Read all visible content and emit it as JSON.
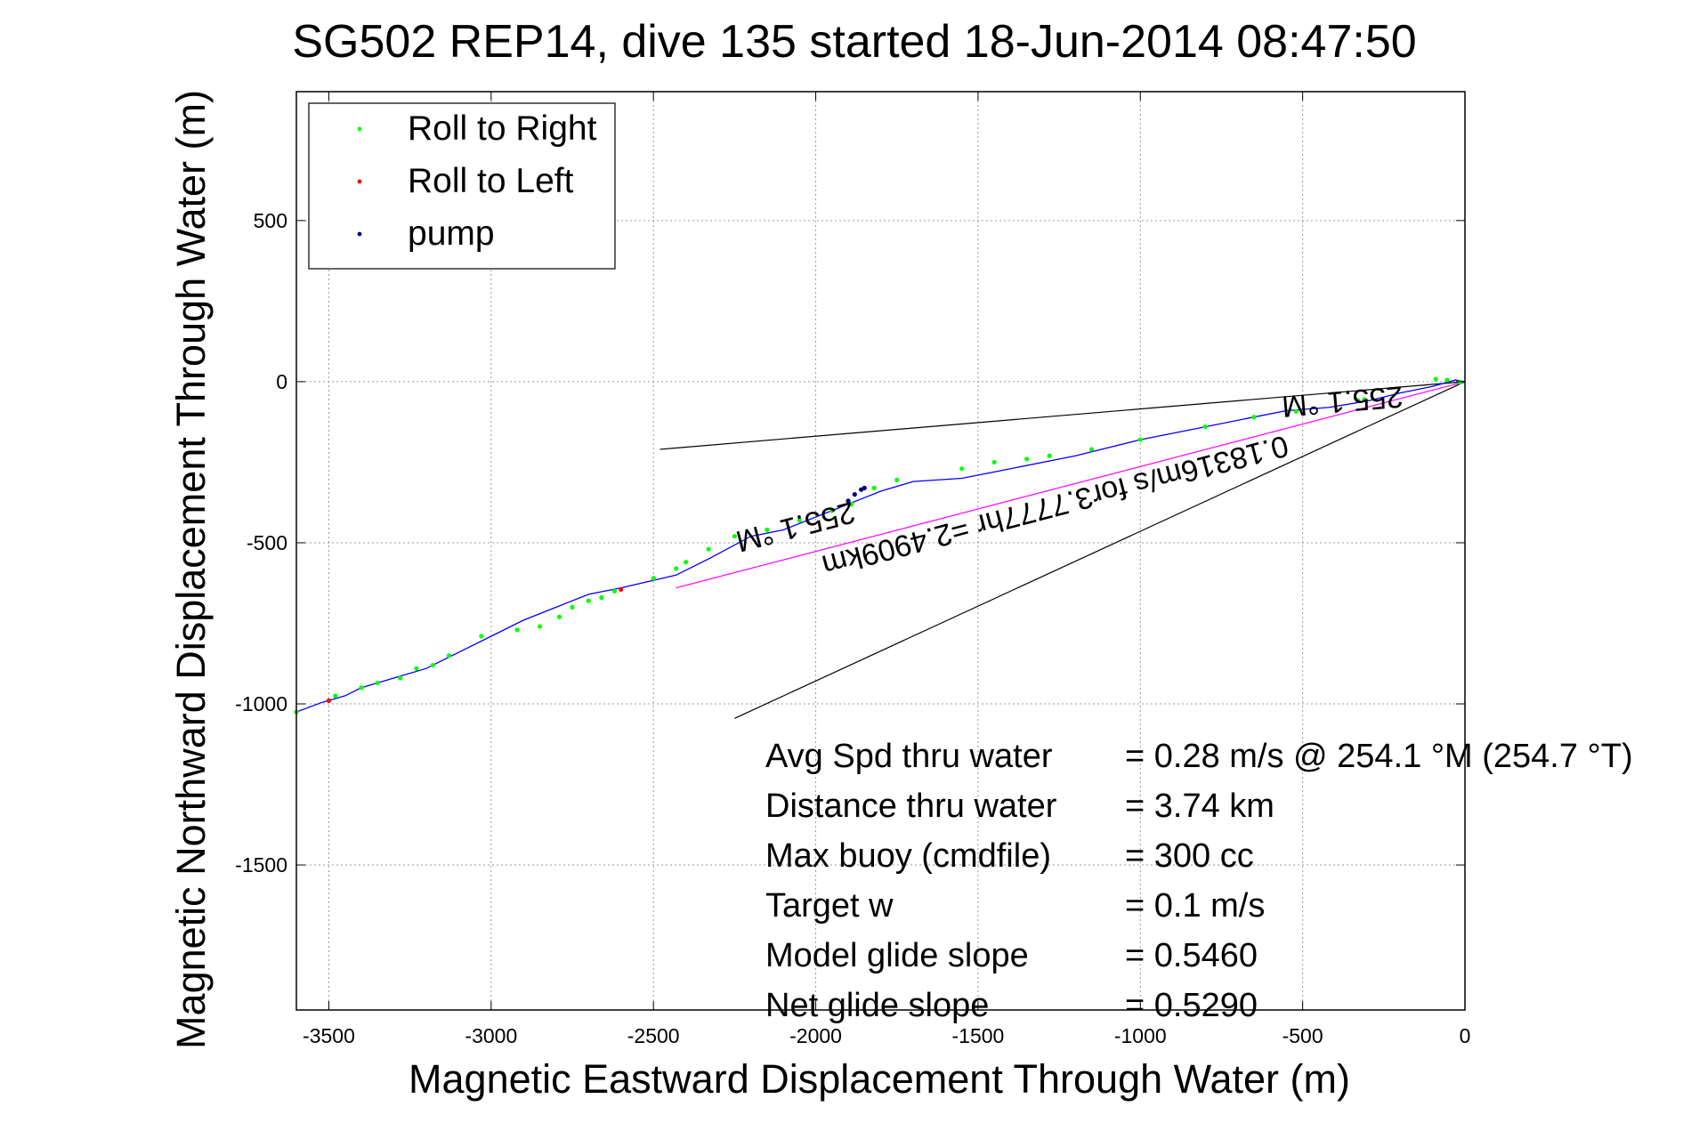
{
  "chart_data": {
    "type": "line",
    "title": "SG502 REP14, dive 135 started 18-Jun-2014 08:47:50",
    "xlabel": "Magnetic Eastward Displacement Through Water (m)",
    "ylabel": "Magnetic Northward Displacement Through Water (m)",
    "xlim": [
      -3600,
      0
    ],
    "ylim": [
      -1950,
      900
    ],
    "x_ticks": [
      -3500,
      -3000,
      -2500,
      -2000,
      -1500,
      -1000,
      -500,
      0
    ],
    "x_tick_labels": [
      "-3500",
      "-3000",
      "-2500",
      "-2000",
      "-1500",
      "-1000",
      "-500",
      "0"
    ],
    "y_ticks": [
      500,
      0,
      -500,
      -1000,
      -1500
    ],
    "y_tick_labels": [
      "500",
      "0",
      "-500",
      "-1000",
      "-1500"
    ],
    "grid": true,
    "legend_position": "top-left",
    "legend": [
      {
        "label": "Roll to Right",
        "color": "#00ff00"
      },
      {
        "label": "Roll to Left",
        "color": "#ff0000"
      },
      {
        "label": "pump",
        "color": "#000080"
      }
    ],
    "track": {
      "color": "#0000ff",
      "x": [
        0,
        -30,
        -100,
        -200,
        -300,
        -420,
        -550,
        -650,
        -800,
        -1000,
        -1200,
        -1400,
        -1550,
        -1700,
        -1800,
        -1850,
        -1900,
        -2000,
        -2100,
        -2200,
        -2330,
        -2430,
        -2600,
        -2700,
        -2800,
        -2900,
        -3000,
        -3100,
        -3200,
        -3300,
        -3400,
        -3450,
        -3520,
        -3600
      ],
      "y": [
        0,
        5,
        -15,
        -35,
        -60,
        -80,
        -90,
        -110,
        -140,
        -180,
        -230,
        -270,
        -300,
        -310,
        -340,
        -360,
        -380,
        -420,
        -460,
        -480,
        -550,
        -600,
        -640,
        -660,
        -700,
        -740,
        -790,
        -840,
        -890,
        -920,
        -950,
        -975,
        -995,
        -1025
      ]
    },
    "roll_right_points": {
      "x": [
        -15,
        -55,
        -90,
        -310,
        -330,
        -520,
        -650,
        -800,
        -1000,
        -1150,
        -1280,
        -1350,
        -1450,
        -1550,
        -1750,
        -1820,
        -1890,
        -1950,
        -2050,
        -2150,
        -2250,
        -2330,
        -2400,
        -2430,
        -2500,
        -2620,
        -2660,
        -2700,
        -2750,
        -2790,
        -2850,
        -2920,
        -3030,
        -3130,
        -3180,
        -3230,
        -3280,
        -3350,
        -3400,
        -3480,
        -3600
      ],
      "y": [
        -2,
        5,
        8,
        -55,
        -58,
        -92,
        -110,
        -140,
        -180,
        -210,
        -230,
        -240,
        -250,
        -270,
        -305,
        -330,
        -380,
        -400,
        -430,
        -460,
        -480,
        -520,
        -560,
        -580,
        -610,
        -650,
        -670,
        -680,
        -700,
        -730,
        -760,
        -770,
        -790,
        -850,
        -880,
        -890,
        -920,
        -935,
        -950,
        -975,
        -1025
      ]
    },
    "roll_left_points": {
      "x": [
        -2600,
        -3500
      ],
      "y": [
        -645,
        -990
      ]
    },
    "pump_points": {
      "x": [
        -1850,
        -1860,
        -1880,
        -1900
      ],
      "y": [
        -330,
        -335,
        -350,
        -370
      ]
    },
    "annotation_lines": [
      {
        "color": "#000000",
        "x": [
          -2480,
          0
        ],
        "y": [
          -210,
          0
        ]
      },
      {
        "color": "#000000",
        "x": [
          -2250,
          0
        ],
        "y": [
          -1045,
          0
        ]
      },
      {
        "color": "#ff00ff",
        "x": [
          -2430,
          0
        ],
        "y": [
          -640,
          0
        ]
      }
    ],
    "rotated_labels": [
      {
        "text": "255.1 °M",
        "x": -380,
        "y": -30
      },
      {
        "text": "0.18316m/s for3.7777hr =2.4909km",
        "x": -1270,
        "y": -355
      },
      {
        "text": "255.1 °M",
        "x": -2070,
        "y": -420
      }
    ],
    "stats": [
      {
        "label": "Avg Spd thru water",
        "value": "=  0.28 m/s @ 254.1 °M (254.7 °T)"
      },
      {
        "label": "Distance thru water",
        "value": "=  3.74 km"
      },
      {
        "label": "Max buoy (cmdfile)",
        "value": "= 300 cc"
      },
      {
        "label": "Target w",
        "value": "= 0.1 m/s"
      },
      {
        "label": "Model glide slope",
        "value": "= 0.5460"
      },
      {
        "label": "Net glide slope",
        "value": "= 0.5290"
      }
    ]
  }
}
